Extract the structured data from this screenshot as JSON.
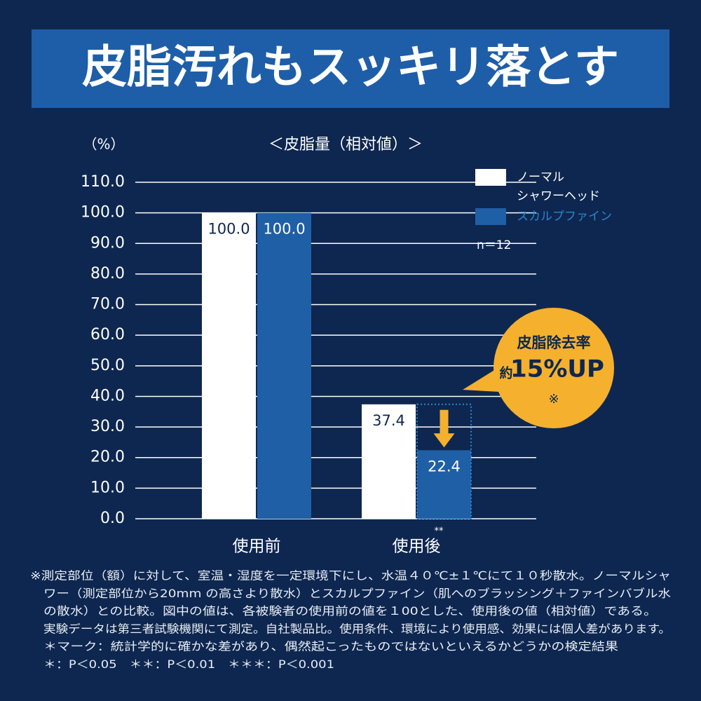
{
  "header": {
    "title": "皮脂汚れもスッキリ落とす"
  },
  "chart_data": {
    "type": "bar",
    "title": "＜皮脂量（相対値）＞",
    "y_label": "（%）",
    "categories": [
      "使用前",
      "使用後"
    ],
    "series": [
      {
        "name": "ノーマル\nシャワーヘッド",
        "color": "#ffffff",
        "values": [
          100,
          37.4
        ],
        "value_labels": [
          "100.0",
          "37.4"
        ]
      },
      {
        "name": "スカルプファイン",
        "color": "#1f5fa6",
        "values": [
          100,
          22.4
        ],
        "value_labels": [
          "100.0",
          "22.4"
        ]
      }
    ],
    "ylim": [
      0,
      110
    ],
    "yticks": [
      {
        "value": 0,
        "label": "0.0"
      },
      {
        "value": 10,
        "label": "10.0"
      },
      {
        "value": 20,
        "label": "20.0"
      },
      {
        "value": 30,
        "label": "30.0"
      },
      {
        "value": 40,
        "label": "40.0"
      },
      {
        "value": 50,
        "label": "50.0"
      },
      {
        "value": 60,
        "label": "60.0"
      },
      {
        "value": 70,
        "label": "70.0"
      },
      {
        "value": 80,
        "label": "80.0"
      },
      {
        "value": 90,
        "label": "90.0"
      },
      {
        "value": 100,
        "label": "100.0"
      },
      {
        "value": 110,
        "label": "110.0"
      }
    ],
    "grid": true,
    "note": "n＝12",
    "significance": "**"
  },
  "callout": {
    "line1": "皮脂除去率",
    "prefix": "約",
    "line2": "15%UP",
    "mark": "※"
  },
  "footnotes": [
    "※測定部位（額）に対して、室温・湿度を一定環境下にし、水温４０℃±１℃にて１０秒散水。ノーマルシャ",
    "ワー（測定部位から20mm の高さより散水）とスカルプファイン（肌へのブラッシング＋ファインバブル水",
    "の散水）との比較。図中の値は、各被験者の使用前の値を１00とした、使用後の値（相対値）である。",
    "実験データは第三者試験機関にて測定。自社製品比。使用条件、環境により使用感、効果には個人差があります。",
    "＊マーク：統計学的に確かな差があり、偶然起こったものではないといえるかどうかの検定結果",
    "＊：P＜0.05　＊＊：P＜0.01　＊＊＊：P＜0.001"
  ]
}
